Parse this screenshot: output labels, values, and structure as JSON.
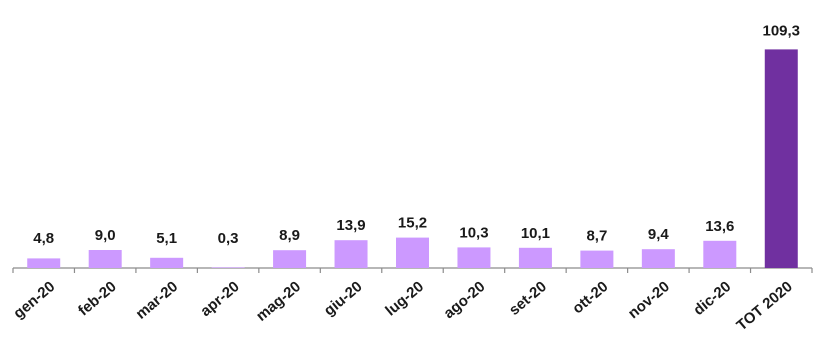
{
  "chart_data": {
    "type": "bar",
    "categories": [
      "gen-20",
      "feb-20",
      "mar-20",
      "apr-20",
      "mag-20",
      "giu-20",
      "lug-20",
      "ago-20",
      "set-20",
      "ott-20",
      "nov-20",
      "dic-20",
      "TOT 2020"
    ],
    "values": [
      4.8,
      9.0,
      5.1,
      0.3,
      8.9,
      13.9,
      15.2,
      10.3,
      10.1,
      8.7,
      9.4,
      13.6,
      109.3
    ],
    "value_labels": [
      "4,8",
      "9,0",
      "5,1",
      "0,3",
      "8,9",
      "13,9",
      "15,2",
      "10,3",
      "10,1",
      "8,7",
      "9,4",
      "13,6",
      "109,3"
    ],
    "title": "",
    "xlabel": "",
    "ylabel": "",
    "ylim": [
      0,
      112
    ],
    "grid": false,
    "legend": "none",
    "colors": {
      "monthly_bar": "#cc99ff",
      "total_bar": "#7030a0",
      "axis": "#8c8c8c"
    }
  }
}
